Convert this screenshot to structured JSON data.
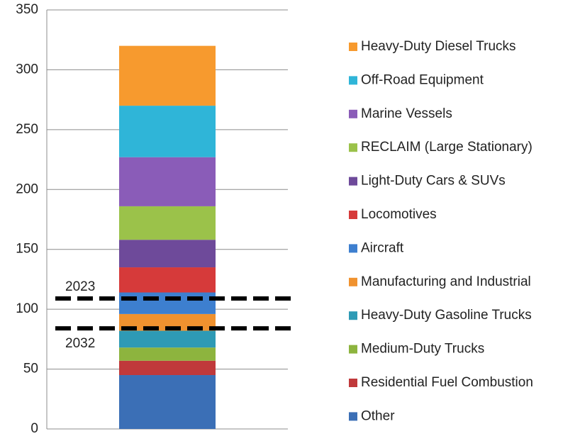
{
  "chart_data": {
    "type": "stacked_bar",
    "categories": [
      null
    ],
    "series": [
      {
        "name": "Other",
        "color": "#3b6fb6",
        "values": [
          45
        ]
      },
      {
        "name": "Residential Fuel Combustion",
        "color": "#c0393b",
        "values": [
          12
        ]
      },
      {
        "name": "Medium-Duty Trucks",
        "color": "#8db43e",
        "values": [
          11
        ]
      },
      {
        "name": "Heavy-Duty Gasoline Trucks",
        "color": "#2e9ab5",
        "values": [
          14
        ]
      },
      {
        "name": "Manufacturing and Industrial",
        "color": "#f0922f",
        "values": [
          14
        ]
      },
      {
        "name": "Aircraft",
        "color": "#3d7fcf",
        "values": [
          18
        ]
      },
      {
        "name": "Locomotives",
        "color": "#d63a3a",
        "values": [
          21
        ]
      },
      {
        "name": "Light-Duty Cars & SUVs",
        "color": "#6e4a9a",
        "values": [
          23
        ]
      },
      {
        "name": "RECLAIM (Large Stationary)",
        "color": "#9bc24a",
        "values": [
          28
        ]
      },
      {
        "name": "Marine Vessels",
        "color": "#8a5cb8",
        "values": [
          41
        ]
      },
      {
        "name": "Off-Road Equipment",
        "color": "#2fb5d8",
        "values": [
          43
        ]
      },
      {
        "name": "Heavy-Duty Diesel Trucks",
        "color": "#f79a2e",
        "values": [
          50
        ]
      }
    ],
    "reference_lines": [
      {
        "label": "2023",
        "value": 109
      },
      {
        "label": "2032",
        "value": 84
      }
    ],
    "ylim": [
      0,
      350
    ],
    "yticks": [
      0,
      50,
      100,
      150,
      200,
      250,
      300,
      350
    ],
    "grid": true,
    "legend": "right"
  }
}
